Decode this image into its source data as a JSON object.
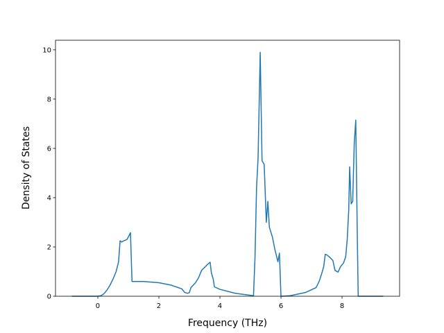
{
  "chart_data": {
    "type": "line",
    "x_label": "Frequency (THz)",
    "y_label": "Density of States",
    "xlim": [
      -1.386,
      9.886
    ],
    "ylim": [
      0,
      10.39
    ],
    "xticks": [
      0,
      2,
      4,
      6,
      8
    ],
    "yticks": [
      0,
      2,
      4,
      6,
      8,
      10
    ],
    "series": [
      {
        "color": "#1f77b4",
        "x": [
          -0.85,
          0,
          0.1,
          0.2,
          0.3,
          0.4,
          0.5,
          0.6,
          0.68,
          0.73,
          0.78,
          0.85,
          0.95,
          1.0,
          1.07,
          1.12,
          1.5,
          2.0,
          2.4,
          2.75,
          2.85,
          2.95,
          3.0,
          3.05,
          3.2,
          3.3,
          3.4,
          3.6,
          3.68,
          3.72,
          3.78,
          3.82,
          4.0,
          4.5,
          5.1,
          5.15,
          5.2,
          5.25,
          5.32,
          5.38,
          5.45,
          5.52,
          5.57,
          5.62,
          5.67,
          5.72,
          5.8,
          5.9,
          5.95,
          6.0,
          6.05,
          6.3,
          6.8,
          7.15,
          7.25,
          7.33,
          7.4,
          7.45,
          7.5,
          7.58,
          7.7,
          7.77,
          7.87,
          7.95,
          8.05,
          8.12,
          8.17,
          8.22,
          8.25,
          8.3,
          8.35,
          8.4,
          8.45,
          8.5,
          8.53,
          9.35
        ],
        "values": [
          0,
          0,
          0.02,
          0.1,
          0.25,
          0.45,
          0.7,
          1.0,
          1.4,
          2.25,
          2.2,
          2.25,
          2.3,
          2.4,
          2.58,
          0.6,
          0.6,
          0.55,
          0.45,
          0.3,
          0.15,
          0.12,
          0.15,
          0.35,
          0.55,
          0.75,
          1.05,
          1.3,
          1.38,
          0.95,
          0.7,
          0.38,
          0.28,
          0.12,
          0.02,
          1.6,
          4.4,
          5.6,
          9.9,
          5.5,
          5.35,
          3.0,
          3.85,
          2.8,
          2.6,
          2.4,
          1.9,
          1.4,
          1.75,
          0.0,
          0.0,
          0.02,
          0.15,
          0.35,
          0.6,
          0.9,
          1.2,
          1.7,
          1.68,
          1.6,
          1.45,
          1.05,
          0.98,
          1.2,
          1.35,
          1.6,
          2.3,
          3.5,
          5.25,
          3.75,
          3.85,
          6.2,
          7.15,
          2.5,
          0,
          0
        ]
      }
    ]
  }
}
